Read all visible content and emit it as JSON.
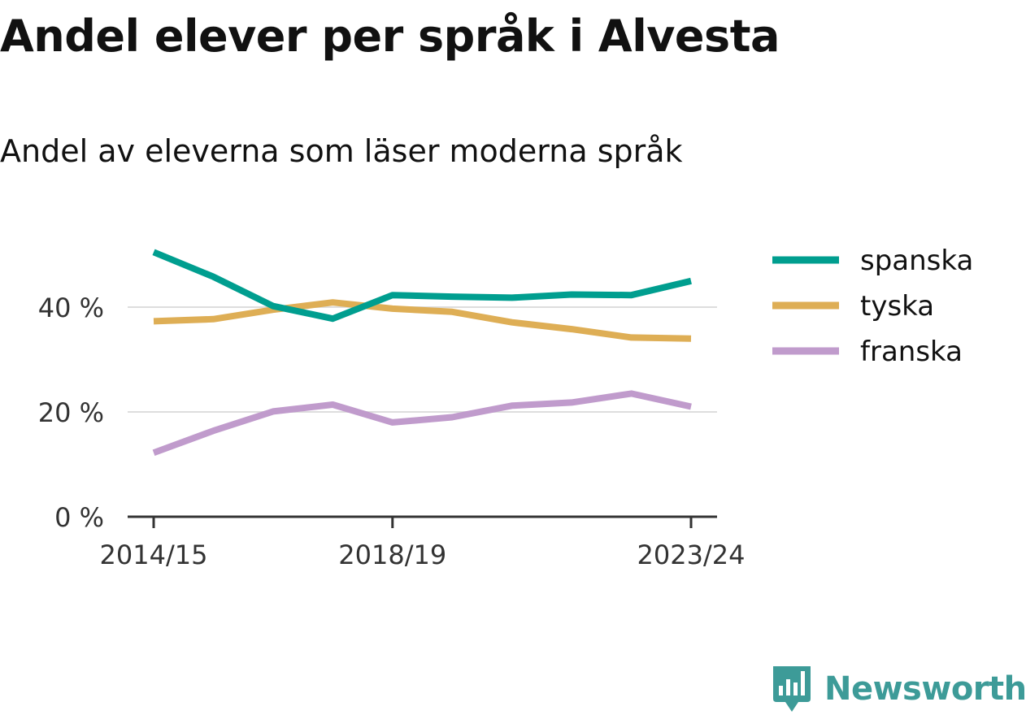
{
  "chart_data": {
    "type": "line",
    "title": "Andel elever per språk i Alvesta",
    "subtitle": "Andel av eleverna som läser moderna språk",
    "x": [
      "2014/15",
      "2015/16",
      "2016/17",
      "2017/18",
      "2018/19",
      "2019/20",
      "2020/21",
      "2021/22",
      "2022/23",
      "2023/24"
    ],
    "x_tick_labels": [
      "2014/15",
      "2018/19",
      "2023/24"
    ],
    "y_ticks": [
      0,
      20,
      40
    ],
    "y_tick_labels": [
      "0 %",
      "20 %",
      "40 %"
    ],
    "ylim": [
      0,
      50
    ],
    "grid": true,
    "legend_position": "right",
    "series": [
      {
        "name": "spanska",
        "color": "#009e8f",
        "values": [
          50.5,
          45.8,
          40.2,
          37.8,
          42.3,
          42.0,
          41.8,
          42.4,
          42.3,
          45.0
        ]
      },
      {
        "name": "tyska",
        "color": "#deae55",
        "values": [
          37.3,
          37.7,
          39.5,
          40.9,
          39.7,
          39.1,
          37.1,
          35.8,
          34.2,
          34.0
        ]
      },
      {
        "name": "franska",
        "color": "#c09bcc",
        "values": [
          12.2,
          16.4,
          20.1,
          21.4,
          18.0,
          19.0,
          21.2,
          21.8,
          23.5,
          21.0
        ]
      }
    ]
  },
  "branding": {
    "logo_text": "Newsworthy",
    "logo_color": "#3d9b98",
    "logo_icon": "newsworthy-logo-icon"
  }
}
